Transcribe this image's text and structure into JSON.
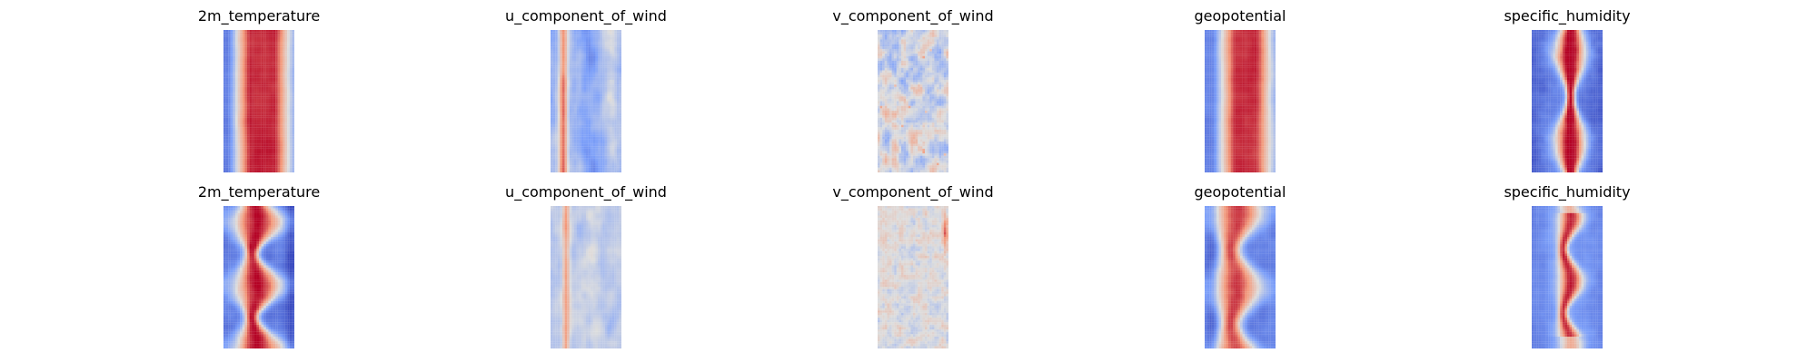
{
  "figure": {
    "rows": [
      {
        "panels": [
          {
            "title": "2m_temperature",
            "pattern": "temp-a"
          },
          {
            "title": "u_component_of_wind",
            "pattern": "u-a"
          },
          {
            "title": "v_component_of_wind",
            "pattern": "v-a"
          },
          {
            "title": "geopotential",
            "pattern": "geo-a"
          },
          {
            "title": "specific_humidity",
            "pattern": "hum-a"
          }
        ]
      },
      {
        "panels": [
          {
            "title": "2m_temperature",
            "pattern": "temp-b"
          },
          {
            "title": "u_component_of_wind",
            "pattern": "u-b"
          },
          {
            "title": "v_component_of_wind",
            "pattern": "v-b"
          },
          {
            "title": "geopotential",
            "pattern": "geo-b"
          },
          {
            "title": "specific_humidity",
            "pattern": "hum-b"
          }
        ]
      }
    ],
    "colormap": "coolwarm",
    "colors": {
      "cold": "#3b4cc0",
      "neutral": "#dddddd",
      "warm": "#b40426"
    }
  }
}
